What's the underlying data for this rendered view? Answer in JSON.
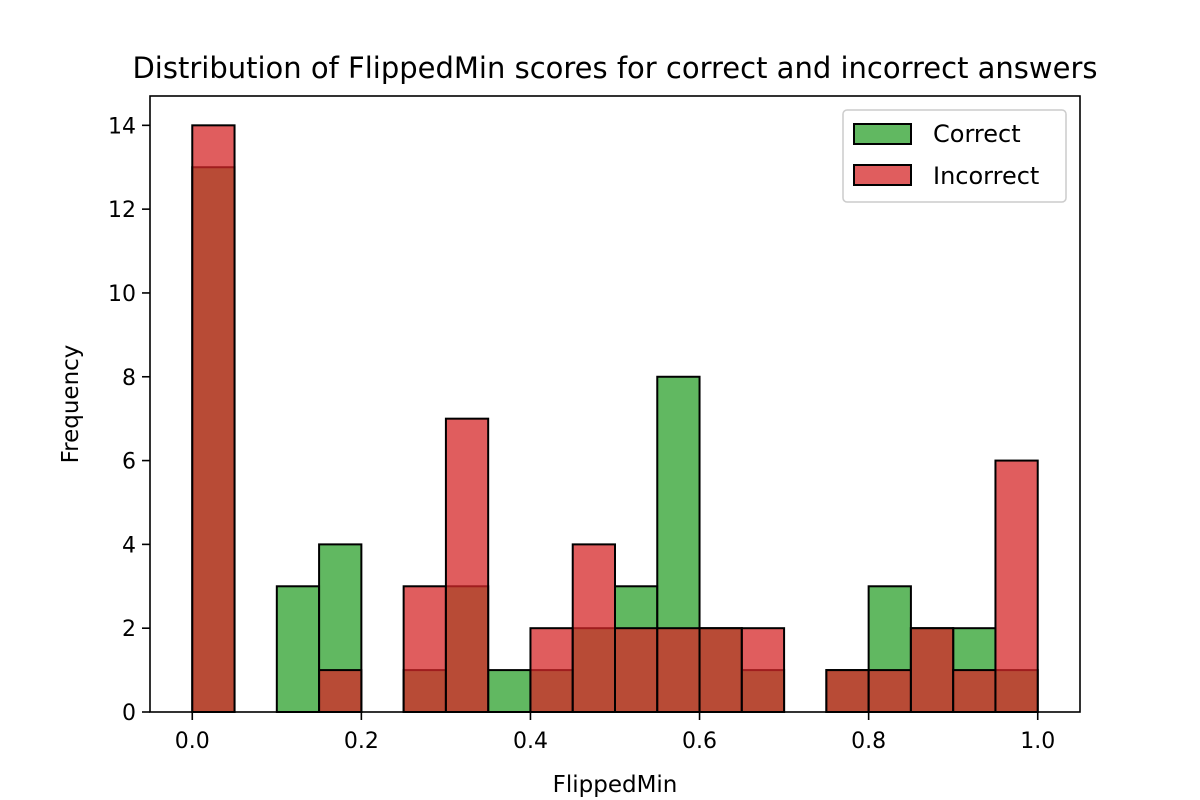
{
  "chart_data": {
    "type": "bar",
    "title": "Distribution of FlippedMin scores for correct and incorrect answers",
    "xlabel": "FlippedMin",
    "ylabel": "Frequency",
    "xlim": [
      -0.05,
      1.05
    ],
    "ylim": [
      0,
      14.7
    ],
    "xticks": [
      "0.0",
      "0.2",
      "0.4",
      "0.6",
      "0.8",
      "1.0"
    ],
    "yticks": [
      "0",
      "2",
      "4",
      "6",
      "8",
      "10",
      "12",
      "14"
    ],
    "bin_edges": [
      0.0,
      0.05,
      0.1,
      0.15,
      0.2,
      0.25,
      0.3,
      0.35,
      0.4,
      0.45,
      0.5,
      0.55,
      0.6,
      0.65,
      0.7,
      0.75,
      0.8,
      0.85,
      0.9,
      0.95,
      1.0
    ],
    "series": [
      {
        "name": "Correct",
        "color": "#2ca02c",
        "values": [
          13,
          0,
          3,
          4,
          0,
          1,
          3,
          1,
          1,
          2,
          3,
          8,
          2,
          1,
          0,
          1,
          3,
          2,
          2,
          1
        ]
      },
      {
        "name": "Incorrect",
        "color": "#d62728",
        "values": [
          14,
          0,
          0,
          1,
          0,
          3,
          7,
          0,
          2,
          4,
          2,
          2,
          2,
          2,
          0,
          1,
          1,
          2,
          1,
          6
        ]
      }
    ],
    "grid": false,
    "legend_position": "top-right"
  }
}
